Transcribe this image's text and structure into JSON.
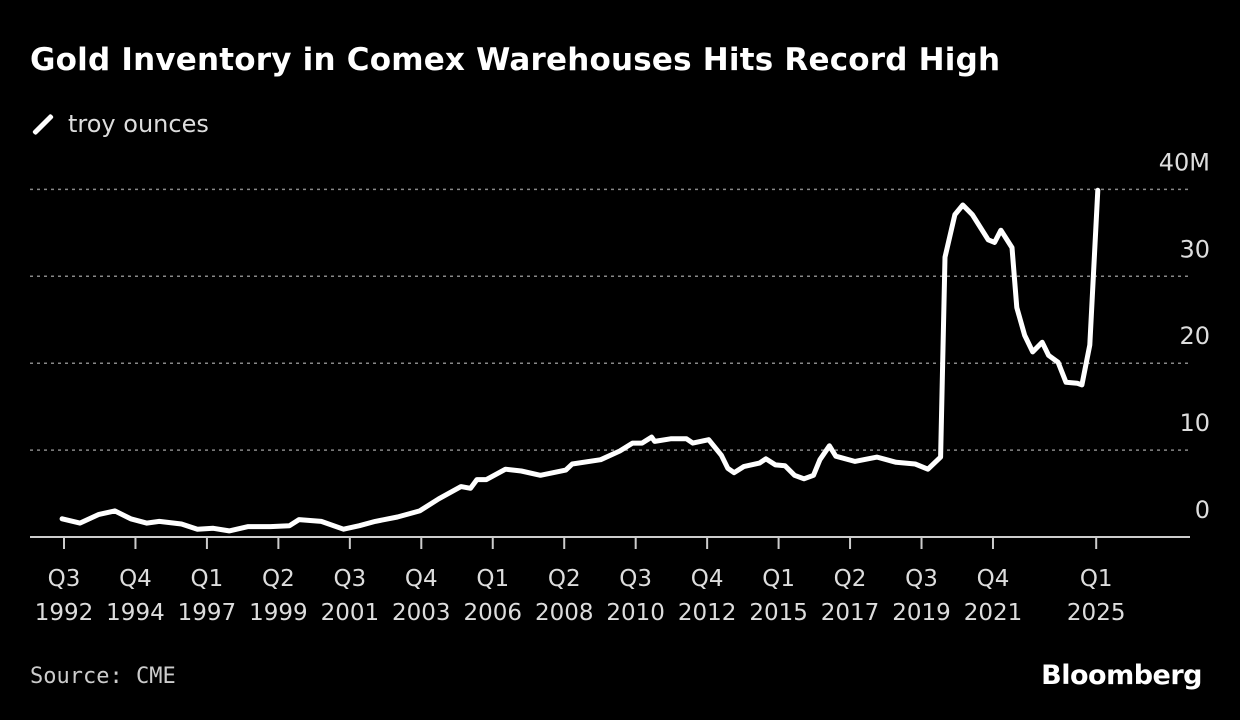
{
  "chart_data": {
    "type": "line",
    "title": "Gold Inventory in Comex Warehouses Hits Record High",
    "legend": [
      {
        "label": "troy ounces",
        "color": "#ffffff"
      }
    ],
    "legend_placement": "top-left",
    "source": "Source: CME",
    "brand": "Bloomberg",
    "ylabel": "",
    "xlabel": "",
    "ylim": [
      0,
      40
    ],
    "yticks": [
      {
        "value": 0,
        "label": "0"
      },
      {
        "value": 10,
        "label": "10"
      },
      {
        "value": 20,
        "label": "20"
      },
      {
        "value": 30,
        "label": "30"
      },
      {
        "value": 40,
        "label": "40M"
      }
    ],
    "grid": true,
    "xticks": [
      {
        "x": 1992.5,
        "q": "Q3",
        "y": "1992"
      },
      {
        "x": 1994.75,
        "q": "Q4",
        "y": "1994"
      },
      {
        "x": 1997.0,
        "q": "Q1",
        "y": "1997"
      },
      {
        "x": 1999.25,
        "q": "Q2",
        "y": "1999"
      },
      {
        "x": 2001.5,
        "q": "Q3",
        "y": "2001"
      },
      {
        "x": 2003.75,
        "q": "Q4",
        "y": "2003"
      },
      {
        "x": 2006.0,
        "q": "Q1",
        "y": "2006"
      },
      {
        "x": 2008.25,
        "q": "Q2",
        "y": "2008"
      },
      {
        "x": 2010.5,
        "q": "Q3",
        "y": "2010"
      },
      {
        "x": 2012.75,
        "q": "Q4",
        "y": "2012"
      },
      {
        "x": 2015.0,
        "q": "Q1",
        "y": "2015"
      },
      {
        "x": 2017.25,
        "q": "Q2",
        "y": "2017"
      },
      {
        "x": 2019.5,
        "q": "Q3",
        "y": "2019"
      },
      {
        "x": 2021.75,
        "q": "Q4",
        "y": "2021"
      },
      {
        "x": 2025.0,
        "q": "Q1",
        "y": "2025"
      }
    ],
    "series": [
      {
        "name": "troy ounces",
        "unit": "millions",
        "x": [
          1992.44,
          1993.0,
          1993.6,
          1994.1,
          1994.6,
          1995.1,
          1995.5,
          1996.2,
          1996.7,
          1997.2,
          1997.7,
          1998.3,
          1999.0,
          1999.6,
          1999.9,
          2000.6,
          2001.3,
          2001.8,
          2002.3,
          2003.0,
          2003.7,
          2004.3,
          2005.0,
          2005.3,
          2005.5,
          2005.8,
          2006.4,
          2006.9,
          2007.5,
          2008.3,
          2008.5,
          2009.4,
          2010.0,
          2010.4,
          2010.7,
          2011.0,
          2011.1,
          2011.6,
          2012.1,
          2012.3,
          2012.8,
          2013.2,
          2013.4,
          2013.6,
          2013.9,
          2014.4,
          2014.6,
          2014.9,
          2015.2,
          2015.5,
          2015.8,
          2016.1,
          2016.3,
          2016.6,
          2016.8,
          2017.4,
          2018.1,
          2018.7,
          2019.3,
          2019.7,
          2020.1,
          2020.24,
          2020.55,
          2020.8,
          2021.1,
          2021.6,
          2021.8,
          2022.0,
          2022.35,
          2022.5,
          2022.75,
          2023.0,
          2023.3,
          2023.5,
          2023.8,
          2024.05,
          2024.4,
          2024.55,
          2024.8,
          2025.05
        ],
        "values": [
          2.1,
          1.6,
          2.6,
          3.0,
          2.1,
          1.6,
          1.8,
          1.5,
          0.9,
          1.0,
          0.7,
          1.2,
          1.2,
          1.3,
          2.0,
          1.8,
          0.9,
          1.3,
          1.8,
          2.3,
          3.0,
          4.4,
          5.8,
          5.6,
          6.6,
          6.6,
          7.8,
          7.6,
          7.1,
          7.7,
          8.4,
          8.9,
          9.9,
          10.8,
          10.8,
          11.5,
          11.0,
          11.3,
          11.3,
          10.8,
          11.2,
          9.4,
          7.9,
          7.4,
          8.1,
          8.5,
          9.0,
          8.3,
          8.2,
          7.1,
          6.7,
          7.1,
          8.9,
          10.5,
          9.3,
          8.7,
          9.2,
          8.6,
          8.4,
          7.8,
          9.2,
          32.2,
          37.1,
          38.2,
          37.1,
          34.2,
          33.9,
          35.3,
          33.3,
          26.4,
          23.2,
          21.3,
          22.4,
          20.9,
          20.1,
          17.8,
          17.7,
          17.5,
          22.1,
          39.9
        ]
      }
    ]
  }
}
